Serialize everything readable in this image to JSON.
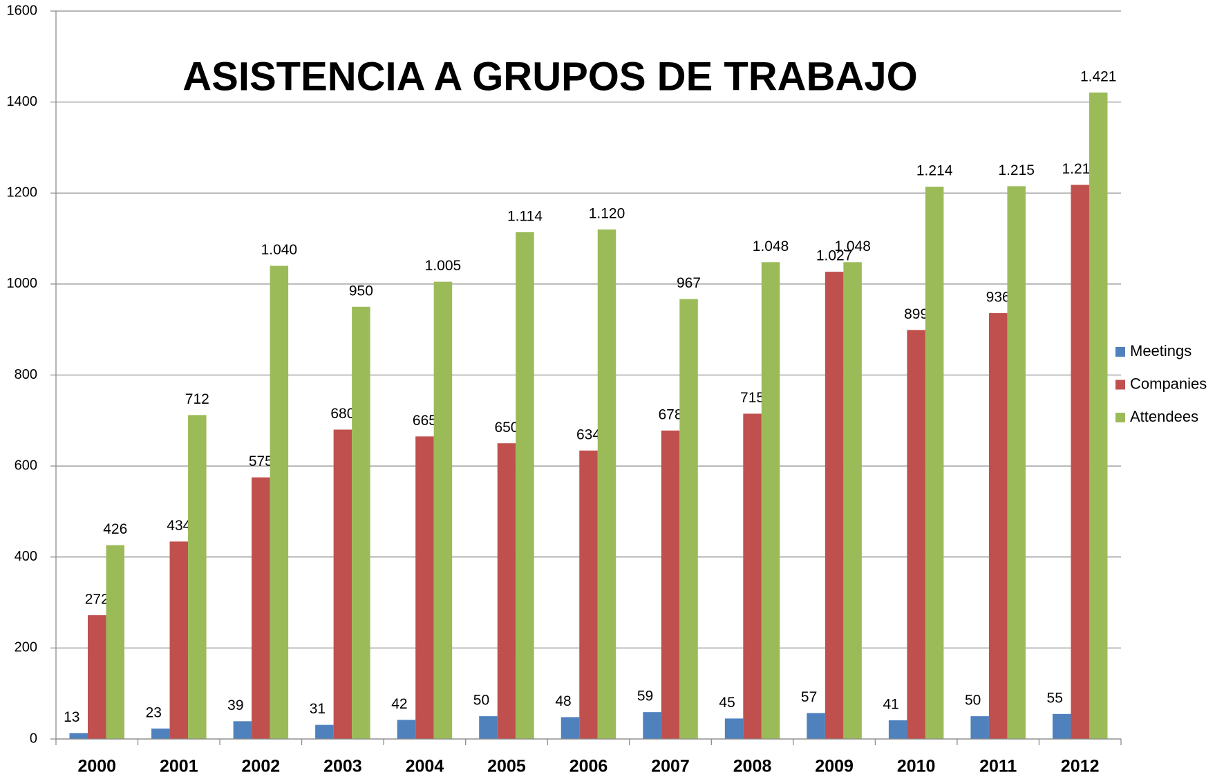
{
  "chart_data": {
    "type": "bar",
    "title": "ASISTENCIA A GRUPOS DE TRABAJO",
    "categories": [
      "2000",
      "2001",
      "2002",
      "2003",
      "2004",
      "2005",
      "2006",
      "2007",
      "2008",
      "2009",
      "2010",
      "2011",
      "2012"
    ],
    "series": [
      {
        "name": "Meetings",
        "color": "#4f81bd",
        "values": [
          13,
          23,
          39,
          31,
          42,
          50,
          48,
          59,
          45,
          57,
          41,
          50,
          55
        ]
      },
      {
        "name": "Companies",
        "color": "#c0504d",
        "values": [
          272,
          434,
          575,
          680,
          665,
          650,
          634,
          678,
          715,
          1027,
          899,
          936,
          1218
        ],
        "value_labels": [
          "272",
          "434",
          "575",
          "680",
          "665",
          "650",
          "634",
          "678",
          "715",
          "1.027",
          "899",
          "936",
          "1.218"
        ]
      },
      {
        "name": "Attendees",
        "color": "#9bbb59",
        "values": [
          426,
          712,
          1040,
          950,
          1005,
          1114,
          1120,
          967,
          1048,
          1048,
          1214,
          1215,
          1421
        ],
        "value_labels": [
          "426",
          "712",
          "1.040",
          "950",
          "1.005",
          "1.114",
          "1.120",
          "967",
          "1.048",
          "1.048",
          "1.214",
          "1.215",
          "1.421"
        ]
      }
    ],
    "ylim": [
      0,
      1600
    ],
    "yticks": [
      0,
      200,
      400,
      600,
      800,
      1000,
      1200,
      1400,
      1600
    ],
    "grid": true,
    "legend": "right"
  }
}
